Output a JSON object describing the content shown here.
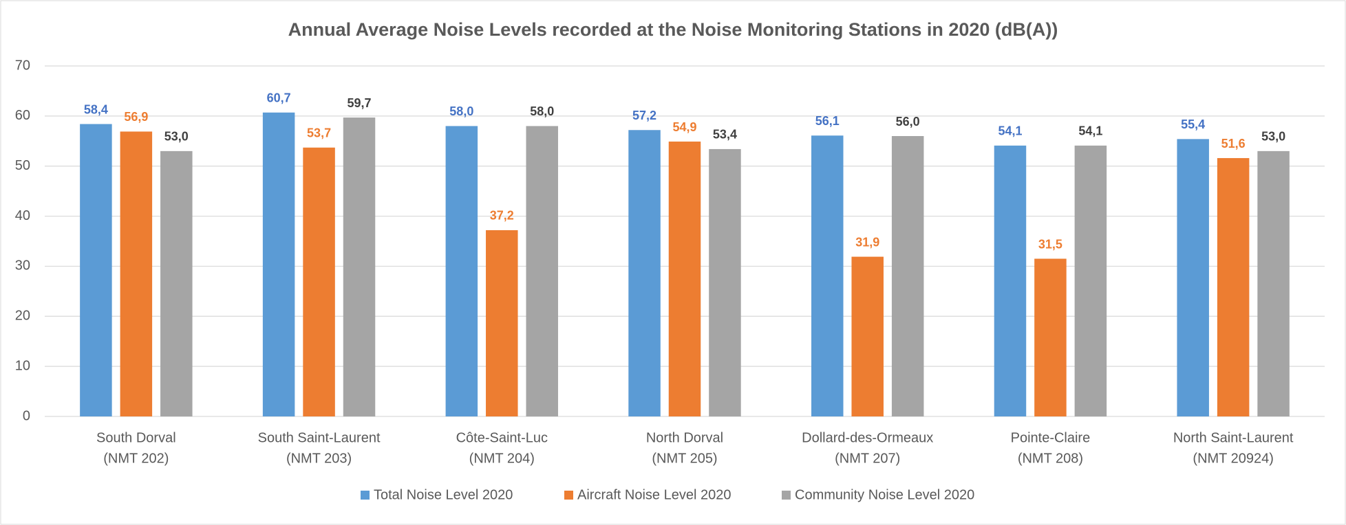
{
  "chart_data": {
    "type": "bar",
    "title": "Annual Average Noise Levels recorded at the Noise Monitoring Stations in 2020 (dB(A))",
    "categories": [
      [
        "South Dorval",
        "(NMT 202)"
      ],
      [
        "South Saint-Laurent",
        "(NMT 203)"
      ],
      [
        "Côte-Saint-Luc",
        "(NMT 204)"
      ],
      [
        "North Dorval",
        "(NMT 205)"
      ],
      [
        "Dollard-des-Ormeaux",
        "(NMT 207)"
      ],
      [
        "Pointe-Claire",
        "(NMT 208)"
      ],
      [
        "North Saint-Laurent",
        "(NMT 20924)"
      ]
    ],
    "series": [
      {
        "name": "Total Noise Level 2020",
        "color": "#5b9bd5",
        "label_color": "#4472c4",
        "values": [
          58.4,
          60.7,
          58.0,
          57.2,
          56.1,
          54.1,
          55.4
        ],
        "value_labels": [
          "58,4",
          "60,7",
          "58,0",
          "57,2",
          "56,1",
          "54,1",
          "55,4"
        ]
      },
      {
        "name": "Aircraft Noise Level 2020",
        "color": "#ed7d31",
        "label_color": "#ed7d31",
        "values": [
          56.9,
          53.7,
          37.2,
          54.9,
          31.9,
          31.5,
          51.6
        ],
        "value_labels": [
          "56,9",
          "53,7",
          "37,2",
          "54,9",
          "31,9",
          "31,5",
          "51,6"
        ]
      },
      {
        "name": "Community Noise Level 2020",
        "color": "#a5a5a5",
        "label_color": "#404040",
        "values": [
          53.0,
          59.7,
          58.0,
          53.4,
          56.0,
          54.1,
          53.0
        ],
        "value_labels": [
          "53,0",
          "59,7",
          "58,0",
          "53,4",
          "56,0",
          "54,1",
          "53,0"
        ]
      }
    ],
    "ylim": [
      0,
      70
    ],
    "yticks": [
      0,
      10,
      20,
      30,
      40,
      50,
      60,
      70
    ],
    "grid": true,
    "legend": "bottom"
  }
}
